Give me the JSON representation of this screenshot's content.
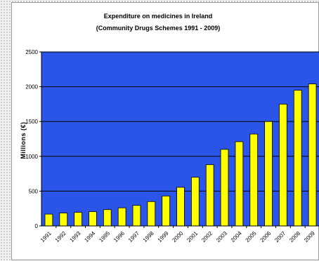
{
  "chart_data": {
    "type": "bar",
    "title": "Expenditure on medicines in Ireland",
    "subtitle": "(Community Drugs Schemes 1991 - 2009)",
    "xlabel": "",
    "ylabel": "Millions (€)",
    "categories": [
      "1991",
      "1992",
      "1993",
      "1994",
      "1995",
      "1996",
      "1997",
      "1998",
      "1999",
      "2000",
      "2001",
      "2002",
      "2003",
      "2004",
      "2005",
      "2006",
      "2007",
      "2008",
      "2009"
    ],
    "values": [
      170,
      185,
      195,
      205,
      235,
      260,
      295,
      350,
      430,
      555,
      700,
      880,
      1100,
      1210,
      1320,
      1500,
      1750,
      1950,
      2040
    ],
    "ylim": [
      0,
      2500
    ],
    "yticks": [
      0,
      500,
      1000,
      1500,
      2000,
      2500
    ],
    "grid": true,
    "legend": "none",
    "colors": {
      "plot_background": "#2a55e8",
      "bar_fill": "#ffff00",
      "bar_edge": "#000000",
      "gridline": "#000000"
    }
  }
}
